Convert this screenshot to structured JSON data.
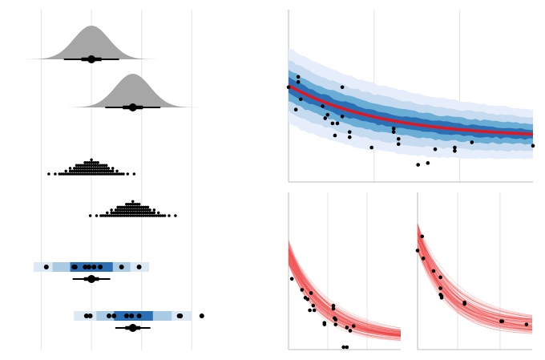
{
  "colors": {
    "grid": "#e4e4e4",
    "axis": "#bdbdbd",
    "density": "#a6a6a6",
    "dot": "#000000",
    "band_outer": "#dde8f5",
    "band_mid": "#a9cbe4",
    "band_inner": "#4f93c9",
    "band_core": "#2a6fb3",
    "fit": "#e8131b",
    "spaghetti": "#f03c3c"
  },
  "chart_data": [
    {
      "id": "eye-and-dots",
      "type": "interval-and-dotplot",
      "xlim": [
        -3.2,
        6.9
      ],
      "grid_x": [
        -2,
        0,
        2,
        4
      ],
      "groups": [
        {
          "kind": "halfeye",
          "mean": 0,
          "sd": 0.7,
          "interval_66": [
            -0.4,
            0.4
          ],
          "interval_95": [
            -1.1,
            1.1
          ],
          "point": 0
        },
        {
          "kind": "halfeye",
          "mean": 1.65,
          "sd": 0.7,
          "interval_66": [
            1.25,
            2.05
          ],
          "interval_95": [
            0.55,
            2.75
          ],
          "point": 1.65
        },
        {
          "kind": "dotplot",
          "mean": 0,
          "sd": 0.65,
          "n": 100
        },
        {
          "kind": "dotplot",
          "mean": 1.65,
          "sd": 0.65,
          "n": 100
        },
        {
          "kind": "bands-with-points",
          "bands_95": [
            -2.3,
            2.3
          ],
          "bands_80": [
            -1.55,
            1.55
          ],
          "bands_50": [
            -0.85,
            0.85
          ],
          "points": [
            -1.8,
            -0.7,
            -0.65,
            -0.25,
            -0.1,
            0.1,
            0.35,
            1.2,
            1.9
          ],
          "interval_66": [
            -0.3,
            0.3
          ],
          "interval_95": [
            -0.75,
            0.75
          ],
          "point": 0
        },
        {
          "kind": "bands-with-points",
          "bands_95": [
            -0.7,
            4.0
          ],
          "bands_80": [
            0.2,
            3.2
          ],
          "bands_50": [
            0.9,
            2.45
          ],
          "points": [
            -0.2,
            -0.05,
            0.7,
            0.9,
            1.4,
            1.6,
            1.9,
            3.5,
            3.55,
            4.4
          ],
          "interval_66": [
            1.35,
            1.95
          ],
          "interval_95": [
            0.95,
            2.35
          ],
          "point": 1.65
        }
      ]
    },
    {
      "id": "fit-ribbons",
      "type": "area",
      "x_range": [
        0,
        1
      ],
      "y_range": [
        0,
        1
      ],
      "grid_x": [
        0.35,
        0.7
      ],
      "curve": {
        "a": 0.56,
        "b": 0.255,
        "k": 2.6
      },
      "band_halfwidths": [
        0.045,
        0.09,
        0.15,
        0.22
      ],
      "points": [
        [
          0.0,
          0.55
        ],
        [
          0.04,
          0.58
        ],
        [
          0.04,
          0.61
        ],
        [
          0.05,
          0.48
        ],
        [
          0.03,
          0.42
        ],
        [
          0.14,
          0.44
        ],
        [
          0.15,
          0.37
        ],
        [
          0.16,
          0.39
        ],
        [
          0.18,
          0.34
        ],
        [
          0.2,
          0.34
        ],
        [
          0.22,
          0.38
        ],
        [
          0.22,
          0.55
        ],
        [
          0.19,
          0.27
        ],
        [
          0.25,
          0.29
        ],
        [
          0.25,
          0.26
        ],
        [
          0.34,
          0.2
        ],
        [
          0.43,
          0.29
        ],
        [
          0.43,
          0.31
        ],
        [
          0.45,
          0.22
        ],
        [
          0.45,
          0.25
        ],
        [
          0.53,
          0.1
        ],
        [
          0.57,
          0.11
        ],
        [
          0.6,
          0.19
        ],
        [
          0.68,
          0.18
        ],
        [
          0.68,
          0.2
        ],
        [
          0.75,
          0.23
        ],
        [
          1.0,
          0.21
        ]
      ]
    },
    {
      "id": "spaghetti-left",
      "type": "line",
      "x_range": [
        0,
        1
      ],
      "y_range": [
        0,
        1
      ],
      "grid_x": [
        0.35,
        0.7
      ],
      "n_draws": 80,
      "curve": {
        "a": 0.62,
        "b": 0.07,
        "k": 3.2
      },
      "points": [
        [
          0.03,
          0.45
        ],
        [
          0.12,
          0.38
        ],
        [
          0.15,
          0.33
        ],
        [
          0.17,
          0.32
        ],
        [
          0.19,
          0.25
        ],
        [
          0.2,
          0.36
        ],
        [
          0.22,
          0.28
        ],
        [
          0.23,
          0.25
        ],
        [
          0.32,
          0.17
        ],
        [
          0.32,
          0.16
        ],
        [
          0.4,
          0.28
        ],
        [
          0.4,
          0.26
        ],
        [
          0.41,
          0.2
        ],
        [
          0.42,
          0.19
        ],
        [
          0.42,
          0.16
        ],
        [
          0.52,
          0.14
        ],
        [
          0.55,
          0.12
        ],
        [
          0.58,
          0.15
        ],
        [
          0.49,
          0.0
        ],
        [
          0.52,
          0.0
        ]
      ]
    },
    {
      "id": "spaghetti-right",
      "type": "line",
      "x_range": [
        0,
        1
      ],
      "y_range": [
        0,
        1
      ],
      "grid_x": [
        0.35,
        0.72
      ],
      "n_draws": 80,
      "curve": {
        "a": 0.72,
        "b": 0.14,
        "k": 3.6
      },
      "points": [
        [
          0.0,
          0.63
        ],
        [
          0.04,
          0.72
        ],
        [
          0.05,
          0.58
        ],
        [
          0.14,
          0.5
        ],
        [
          0.21,
          0.33
        ],
        [
          0.2,
          0.46
        ],
        [
          0.2,
          0.39
        ],
        [
          0.2,
          0.35
        ],
        [
          0.21,
          0.34
        ],
        [
          0.41,
          0.3
        ],
        [
          0.41,
          0.29
        ],
        [
          0.73,
          0.18
        ],
        [
          0.74,
          0.18
        ],
        [
          0.95,
          0.16
        ]
      ]
    }
  ]
}
